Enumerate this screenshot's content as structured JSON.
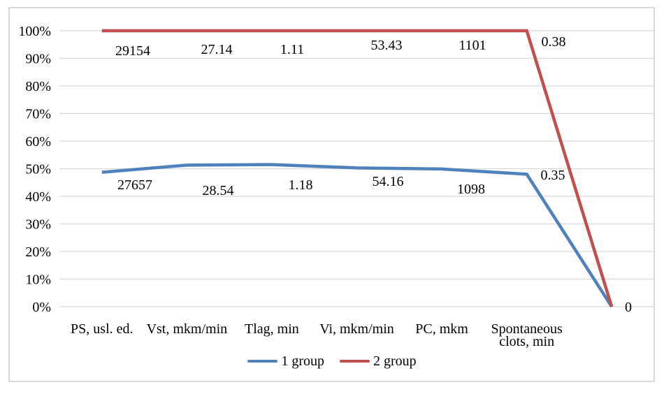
{
  "chart_data": {
    "type": "line",
    "subtype": "100% stacked line",
    "title": "",
    "categories": [
      "PS, usl. ed.",
      "Vst, mkm/min",
      "Tlag, min",
      "Vi, mkm/min",
      "PC, mkm",
      "Spontaneous clots, min",
      ""
    ],
    "series": [
      {
        "name": "1 group",
        "color": "#4F81BD",
        "values": [
          27657,
          28.54,
          1.18,
          54.16,
          1098,
          0.35,
          0
        ],
        "plotted_percent": [
          48.7,
          51.3,
          51.5,
          50.3,
          49.9,
          48.0,
          0
        ],
        "data_labels": [
          "27657",
          "28.54",
          "1.18",
          "54.16",
          "1098",
          "0.35"
        ]
      },
      {
        "name": "2 group",
        "color": "#C0504D",
        "values": [
          29154,
          27.14,
          1.11,
          53.43,
          1101,
          0.38,
          0
        ],
        "plotted_percent": [
          100,
          100,
          100,
          100,
          100,
          100,
          0
        ],
        "data_labels": [
          "29154",
          "27.14",
          "1.11",
          "53.43",
          "1101",
          "0.38"
        ]
      }
    ],
    "final_point_label": "0",
    "yaxis": {
      "tick_labels": [
        "0%",
        "10%",
        "20%",
        "30%",
        "40%",
        "50%",
        "60%",
        "70%",
        "80%",
        "90%",
        "100%"
      ],
      "min": 0,
      "max": 100,
      "gridlines": true
    },
    "legend": {
      "position": "bottom",
      "entries": [
        "1 group",
        "2 group"
      ]
    },
    "colors": {
      "gridline": "#d9d9d9",
      "border": "#d9d9d9",
      "text": "#000000",
      "background": "#ffffff"
    }
  }
}
